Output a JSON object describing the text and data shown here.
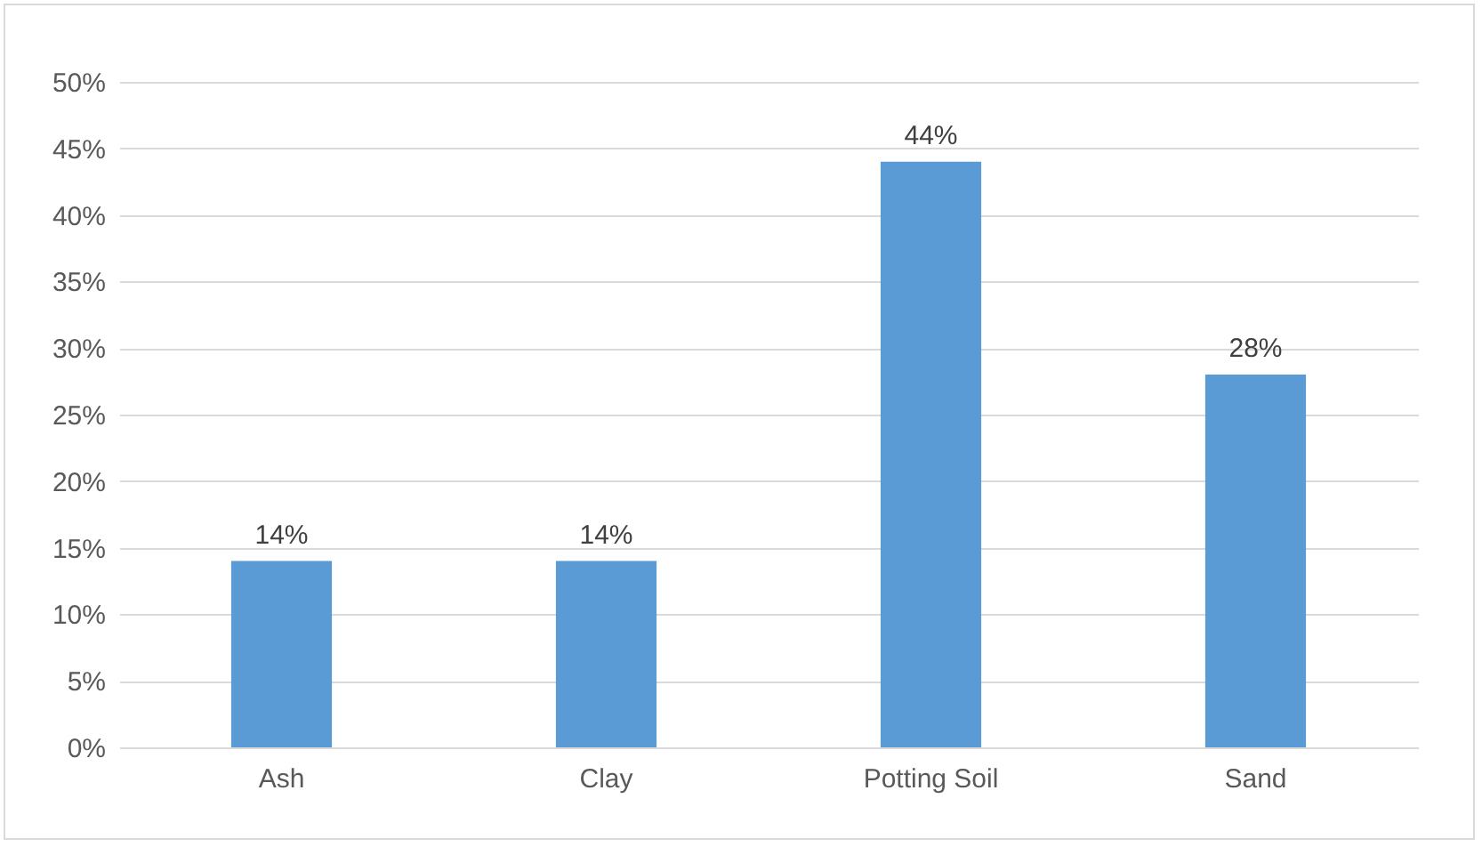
{
  "chart_data": {
    "type": "bar",
    "categories": [
      "Ash",
      "Clay",
      "Potting Soil",
      "Sand"
    ],
    "values": [
      14,
      14,
      44,
      28
    ],
    "color": "#5b9bd5",
    "value_labels": [
      "14%",
      "14%",
      "44%",
      "28%"
    ],
    "ylim": [
      0,
      50
    ],
    "yticks": [
      {
        "value": 0,
        "label": "0%"
      },
      {
        "value": 5,
        "label": "5%"
      },
      {
        "value": 10,
        "label": "10%"
      },
      {
        "value": 15,
        "label": "15%"
      },
      {
        "value": 20,
        "label": "20%"
      },
      {
        "value": 25,
        "label": "25%"
      },
      {
        "value": 30,
        "label": "30%"
      },
      {
        "value": 35,
        "label": "35%"
      },
      {
        "value": 40,
        "label": "40%"
      },
      {
        "value": 45,
        "label": "45%"
      },
      {
        "value": 50,
        "label": "50%"
      }
    ],
    "grid": "y"
  }
}
